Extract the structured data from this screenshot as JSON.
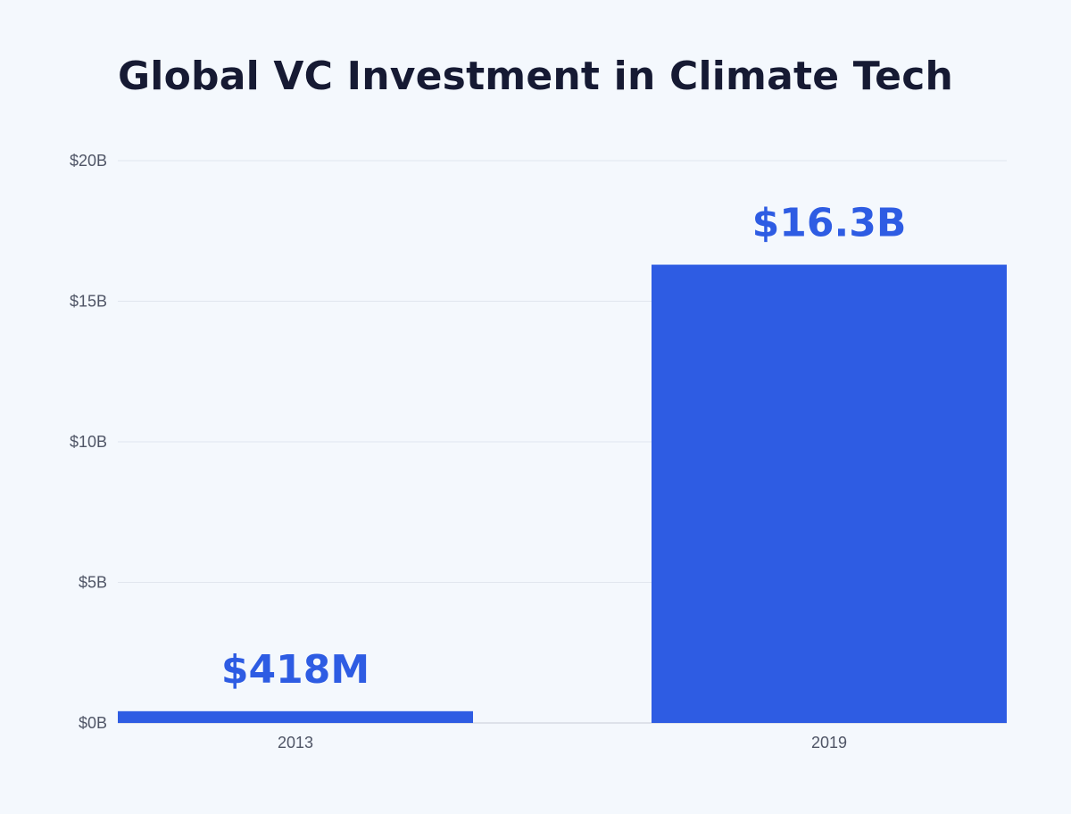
{
  "chart_data": {
    "type": "bar",
    "title": "Global VC Investment in Climate Tech",
    "categories": [
      "2013",
      "2019"
    ],
    "values": [
      0.418,
      16.3
    ],
    "value_labels": [
      "$418M",
      "$16.3B"
    ],
    "y_ticks": [
      {
        "value": 0,
        "label": "$0B"
      },
      {
        "value": 5,
        "label": "$5B"
      },
      {
        "value": 10,
        "label": "$10B"
      },
      {
        "value": 15,
        "label": "$15B"
      },
      {
        "value": 20,
        "label": "$20B"
      }
    ],
    "ylim": [
      0,
      20
    ],
    "grid": true,
    "bar_color": "#2e5ce3",
    "label_color": "#2e5ce3"
  }
}
